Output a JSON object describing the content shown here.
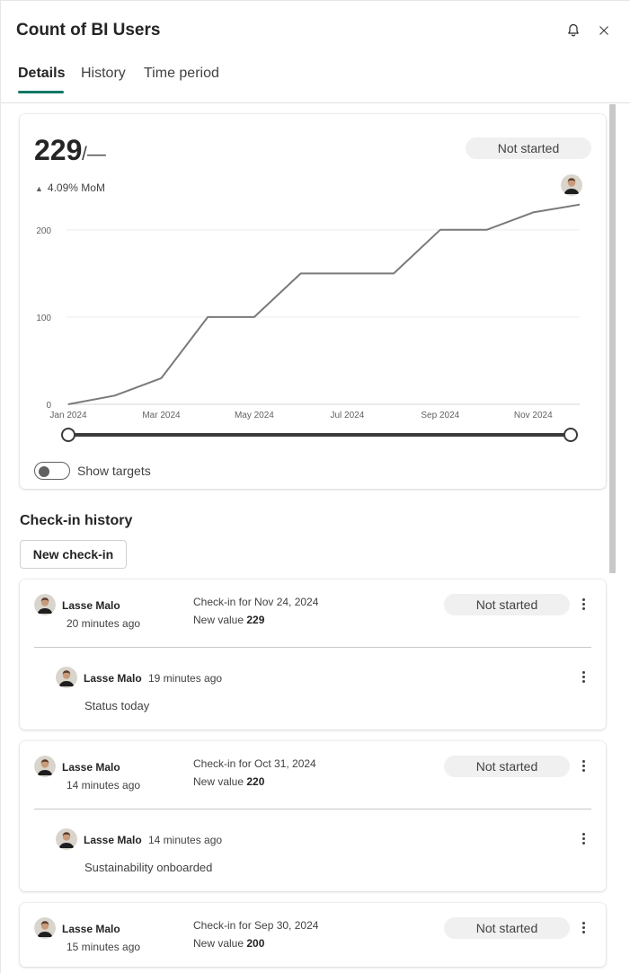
{
  "panel": {
    "title": "Count of BI Users",
    "tabs": [
      {
        "label": "Details",
        "active": true
      },
      {
        "label": "History",
        "active": false
      },
      {
        "label": "Time period",
        "active": false
      }
    ],
    "icons": {
      "bell": "bell-icon",
      "close": "close-icon"
    }
  },
  "summary": {
    "value": "229",
    "target": "/—",
    "status": "Not started",
    "mom": "4.09% MoM",
    "toggle_label": "Show targets",
    "toggle_on": false
  },
  "chart_data": {
    "type": "line",
    "x": [
      "2024-01",
      "2024-02",
      "2024-03",
      "2024-04",
      "2024-05",
      "2024-06",
      "2024-07",
      "2024-08",
      "2024-09",
      "2024-10",
      "2024-11",
      "2024-12"
    ],
    "values": [
      0,
      10,
      30,
      100,
      100,
      150,
      150,
      150,
      200,
      200,
      220,
      229
    ],
    "tick_labels_x": [
      "Jan 2024",
      "Mar 2024",
      "May 2024",
      "Jul 2024",
      "Sep 2024",
      "Nov 2024"
    ],
    "tick_labels_y": [
      "0",
      "100",
      "200"
    ],
    "ylim": [
      0,
      240
    ],
    "grid": true,
    "line_color": "#7a7a7a",
    "slider_range": [
      "Jan 2024",
      "Dec 2024"
    ]
  },
  "history": {
    "title": "Check-in history",
    "new_button": "New check-in",
    "entries": [
      {
        "user": "Lasse Malo",
        "time": "20 minutes ago",
        "checkin_for": "Check-in for Nov 24, 2024",
        "new_value_label": "New value",
        "new_value": "229",
        "status": "Not started",
        "note_user": "Lasse Malo",
        "note_time": "19 minutes ago",
        "note": "Status today"
      },
      {
        "user": "Lasse Malo",
        "time": "14 minutes ago",
        "checkin_for": "Check-in for Oct 31, 2024",
        "new_value_label": "New value",
        "new_value": "220",
        "status": "Not started",
        "note_user": "Lasse Malo",
        "note_time": "14 minutes ago",
        "note": "Sustainability onboarded"
      },
      {
        "user": "Lasse Malo",
        "time": "15 minutes ago",
        "checkin_for": "Check-in for Sep 30, 2024",
        "new_value_label": "New value",
        "new_value": "200",
        "status": "Not started"
      }
    ]
  },
  "colors": {
    "accent": "#117865",
    "pill_bg": "#f0f0f0"
  }
}
